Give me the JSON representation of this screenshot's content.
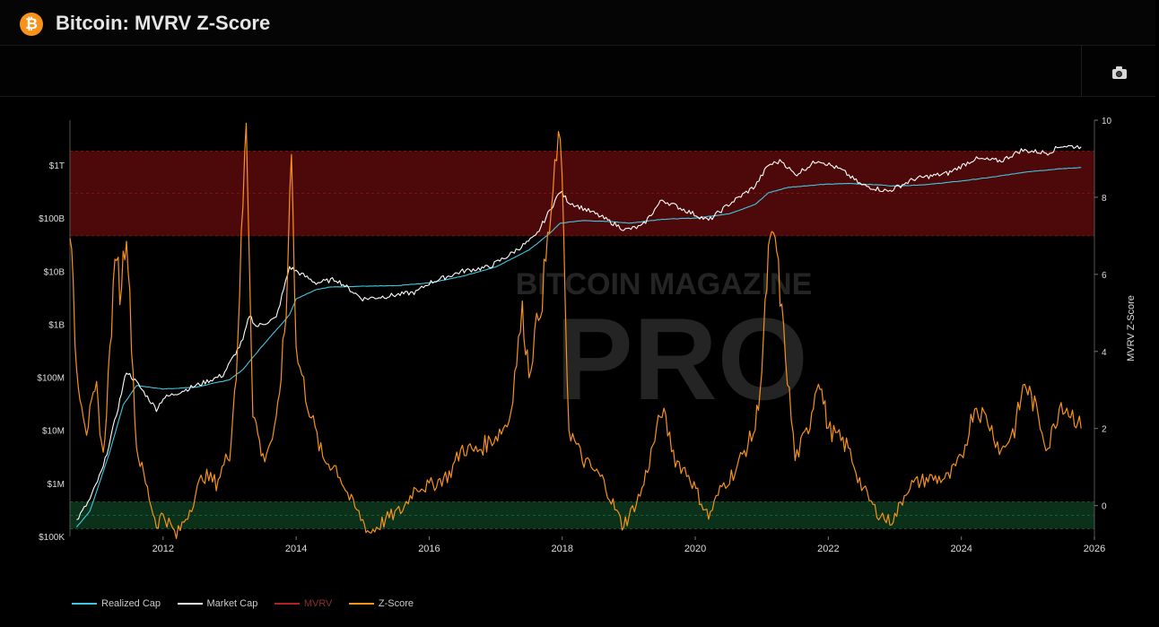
{
  "header": {
    "logo_glyph": "₿",
    "title": "Bitcoin: MVRV Z-Score"
  },
  "toolbar": {
    "camera_icon": "camera-icon"
  },
  "watermark": {
    "line1": "BITCOIN MAGAZINE",
    "line2": "PRO"
  },
  "legend": {
    "items": [
      {
        "label": "Realized Cap",
        "color": "#3ec7e0"
      },
      {
        "label": "Market Cap",
        "color": "#ffffff"
      },
      {
        "label": "MVRV",
        "color": "#b22222"
      },
      {
        "label": "Z-Score",
        "color": "#f7931a"
      }
    ]
  },
  "chart_data": {
    "type": "line",
    "x_ticks": [
      "2012",
      "2014",
      "2016",
      "2018",
      "2020",
      "2022",
      "2024",
      "2026"
    ],
    "x_range": [
      2010.6,
      2026.0
    ],
    "y_left": {
      "scale": "log",
      "ticks": [
        "$100K",
        "$1M",
        "$10M",
        "$100M",
        "$1B",
        "$10B",
        "$100B",
        "$1T"
      ],
      "range": [
        100000,
        7000000000000
      ]
    },
    "y_right": {
      "label": "MVRV Z-Score",
      "ticks": [
        "0",
        "2",
        "4",
        "6",
        "8",
        "10"
      ],
      "range": [
        -0.8,
        10
      ]
    },
    "bands": [
      {
        "axis": "right",
        "from": 7,
        "to": 9.2,
        "color": "#5a0a0a"
      },
      {
        "axis": "right",
        "from": -0.6,
        "to": 0.1,
        "color": "#0d3a1e"
      }
    ],
    "series": [
      {
        "name": "Realized Cap",
        "axis": "left",
        "points": [
          [
            2010.7,
            150000
          ],
          [
            2010.9,
            300000
          ],
          [
            2011.0,
            700000
          ],
          [
            2011.2,
            4000000
          ],
          [
            2011.4,
            30000000
          ],
          [
            2011.6,
            70000000
          ],
          [
            2012.0,
            60000000
          ],
          [
            2012.5,
            65000000
          ],
          [
            2013.0,
            90000000
          ],
          [
            2013.2,
            140000000
          ],
          [
            2013.5,
            400000000
          ],
          [
            2013.9,
            1500000000
          ],
          [
            2014.0,
            3000000000
          ],
          [
            2014.3,
            4500000000
          ],
          [
            2014.5,
            5000000000
          ],
          [
            2015.0,
            5200000000
          ],
          [
            2015.5,
            5300000000
          ],
          [
            2016.0,
            6000000000
          ],
          [
            2016.5,
            8000000000
          ],
          [
            2017.0,
            12000000000
          ],
          [
            2017.5,
            25000000000
          ],
          [
            2017.8,
            50000000000
          ],
          [
            2017.97,
            80000000000
          ],
          [
            2018.3,
            90000000000
          ],
          [
            2018.8,
            85000000000
          ],
          [
            2019.0,
            80000000000
          ],
          [
            2019.5,
            95000000000
          ],
          [
            2020.0,
            100000000000
          ],
          [
            2020.5,
            120000000000
          ],
          [
            2020.9,
            180000000000
          ],
          [
            2021.1,
            300000000000
          ],
          [
            2021.4,
            380000000000
          ],
          [
            2021.9,
            430000000000
          ],
          [
            2022.3,
            450000000000
          ],
          [
            2022.8,
            420000000000
          ],
          [
            2023.0,
            400000000000
          ],
          [
            2023.5,
            430000000000
          ],
          [
            2024.0,
            500000000000
          ],
          [
            2024.5,
            600000000000
          ],
          [
            2025.0,
            750000000000
          ],
          [
            2025.5,
            850000000000
          ],
          [
            2025.8,
            900000000000
          ]
        ]
      },
      {
        "name": "Market Cap",
        "axis": "left",
        "points": [
          [
            2010.7,
            200000
          ],
          [
            2010.9,
            500000
          ],
          [
            2011.1,
            2000000
          ],
          [
            2011.3,
            20000000
          ],
          [
            2011.45,
            130000000
          ],
          [
            2011.6,
            80000000
          ],
          [
            2011.9,
            25000000
          ],
          [
            2012.0,
            40000000
          ],
          [
            2012.5,
            70000000
          ],
          [
            2012.9,
            110000000
          ],
          [
            2013.2,
            500000000
          ],
          [
            2013.3,
            1500000000
          ],
          [
            2013.4,
            900000000
          ],
          [
            2013.7,
            1300000000
          ],
          [
            2013.9,
            12000000000
          ],
          [
            2014.0,
            10000000000
          ],
          [
            2014.3,
            6000000000
          ],
          [
            2014.6,
            7000000000
          ],
          [
            2015.0,
            3000000000
          ],
          [
            2015.3,
            3300000000
          ],
          [
            2015.8,
            4000000000
          ],
          [
            2016.0,
            6000000000
          ],
          [
            2016.5,
            10000000000
          ],
          [
            2016.9,
            12000000000
          ],
          [
            2017.2,
            20000000000
          ],
          [
            2017.6,
            45000000000
          ],
          [
            2017.97,
            320000000000
          ],
          [
            2018.1,
            200000000000
          ],
          [
            2018.5,
            120000000000
          ],
          [
            2018.95,
            60000000000
          ],
          [
            2019.2,
            70000000000
          ],
          [
            2019.5,
            220000000000
          ],
          [
            2019.8,
            150000000000
          ],
          [
            2020.2,
            90000000000
          ],
          [
            2020.5,
            180000000000
          ],
          [
            2020.9,
            400000000000
          ],
          [
            2021.1,
            1000000000000
          ],
          [
            2021.3,
            1200000000000
          ],
          [
            2021.5,
            650000000000
          ],
          [
            2021.85,
            1250000000000
          ],
          [
            2022.2,
            800000000000
          ],
          [
            2022.5,
            420000000000
          ],
          [
            2022.9,
            320000000000
          ],
          [
            2023.3,
            550000000000
          ],
          [
            2023.8,
            700000000000
          ],
          [
            2024.2,
            1300000000000
          ],
          [
            2024.6,
            1200000000000
          ],
          [
            2024.9,
            1900000000000
          ],
          [
            2025.3,
            1700000000000
          ],
          [
            2025.5,
            2300000000000
          ],
          [
            2025.8,
            2200000000000
          ]
        ]
      },
      {
        "name": "Z-Score",
        "axis": "right",
        "points": [
          [
            2010.6,
            7.3
          ],
          [
            2010.7,
            3.5
          ],
          [
            2010.85,
            2.0
          ],
          [
            2011.0,
            3.0
          ],
          [
            2011.1,
            1.2
          ],
          [
            2011.2,
            4.0
          ],
          [
            2011.3,
            6.8
          ],
          [
            2011.35,
            5.5
          ],
          [
            2011.45,
            7.2
          ],
          [
            2011.6,
            1.5
          ],
          [
            2011.9,
            -0.5
          ],
          [
            2012.0,
            -0.2
          ],
          [
            2012.2,
            -0.8
          ],
          [
            2012.4,
            -0.1
          ],
          [
            2012.6,
            0.8
          ],
          [
            2012.8,
            0.6
          ],
          [
            2013.0,
            1.4
          ],
          [
            2013.1,
            3.5
          ],
          [
            2013.25,
            10.0
          ],
          [
            2013.35,
            2.5
          ],
          [
            2013.5,
            1.2
          ],
          [
            2013.7,
            2.0
          ],
          [
            2013.85,
            5.0
          ],
          [
            2013.93,
            9.5
          ],
          [
            2014.0,
            4.0
          ],
          [
            2014.2,
            2.5
          ],
          [
            2014.4,
            1.2
          ],
          [
            2014.6,
            1.0
          ],
          [
            2014.8,
            0.2
          ],
          [
            2015.0,
            -0.4
          ],
          [
            2015.1,
            -0.7
          ],
          [
            2015.4,
            -0.3
          ],
          [
            2015.6,
            -0.1
          ],
          [
            2015.8,
            0.5
          ],
          [
            2016.0,
            0.5
          ],
          [
            2016.3,
            0.8
          ],
          [
            2016.5,
            1.5
          ],
          [
            2016.7,
            1.4
          ],
          [
            2017.0,
            1.8
          ],
          [
            2017.2,
            2.2
          ],
          [
            2017.4,
            5.0
          ],
          [
            2017.5,
            3.5
          ],
          [
            2017.7,
            5.5
          ],
          [
            2017.97,
            9.8
          ],
          [
            2018.1,
            2.0
          ],
          [
            2018.3,
            1.2
          ],
          [
            2018.6,
            0.7
          ],
          [
            2018.9,
            -0.5
          ],
          [
            2019.0,
            -0.3
          ],
          [
            2019.2,
            0.4
          ],
          [
            2019.5,
            2.5
          ],
          [
            2019.7,
            1.2
          ],
          [
            2019.9,
            0.8
          ],
          [
            2020.2,
            -0.3
          ],
          [
            2020.4,
            0.5
          ],
          [
            2020.6,
            0.9
          ],
          [
            2020.9,
            2.0
          ],
          [
            2021.0,
            3.5
          ],
          [
            2021.1,
            6.5
          ],
          [
            2021.2,
            7.0
          ],
          [
            2021.3,
            5.0
          ],
          [
            2021.5,
            1.2
          ],
          [
            2021.7,
            2.0
          ],
          [
            2021.85,
            3.4
          ],
          [
            2022.0,
            2.0
          ],
          [
            2022.3,
            1.5
          ],
          [
            2022.5,
            0.5
          ],
          [
            2022.7,
            -0.1
          ],
          [
            2022.9,
            -0.4
          ],
          [
            2023.0,
            -0.3
          ],
          [
            2023.2,
            0.5
          ],
          [
            2023.5,
            0.7
          ],
          [
            2023.8,
            0.7
          ],
          [
            2024.0,
            1.2
          ],
          [
            2024.2,
            2.6
          ],
          [
            2024.4,
            2.2
          ],
          [
            2024.6,
            1.4
          ],
          [
            2024.8,
            2.0
          ],
          [
            2024.95,
            3.2
          ],
          [
            2025.1,
            2.6
          ],
          [
            2025.3,
            1.5
          ],
          [
            2025.5,
            2.7
          ],
          [
            2025.7,
            2.3
          ],
          [
            2025.8,
            2.0
          ]
        ]
      }
    ]
  }
}
